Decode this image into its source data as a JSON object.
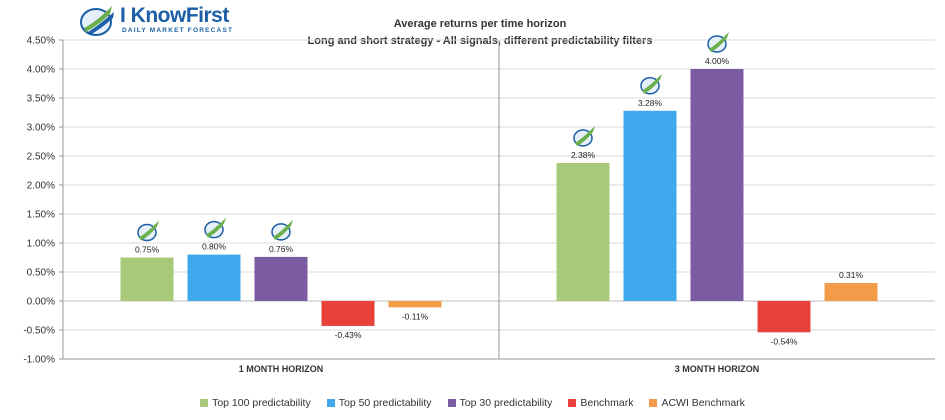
{
  "logo": {
    "brand": "I KnowFirst",
    "tagline": "DAILY MARKET FORECAST"
  },
  "chart_data": {
    "type": "bar",
    "title": "Average returns per time horizon",
    "subtitle": "Long and short strategy - All signals, different predictability filters",
    "categories": [
      "1 MONTH HORIZON",
      "3 MONTH HORIZON"
    ],
    "series": [
      {
        "name": "Top 100 predictability",
        "color": "#a9c97a",
        "values": [
          0.75,
          2.38
        ],
        "labels": [
          "0.75%",
          "2.38%"
        ]
      },
      {
        "name": "Top 50 predictability",
        "color": "#3fa9ee",
        "values": [
          0.8,
          3.28
        ],
        "labels": [
          "0.80%",
          "3.28%"
        ]
      },
      {
        "name": "Top 30 predictability",
        "color": "#7b5ca3",
        "values": [
          0.76,
          4.0
        ],
        "labels": [
          "0.76%",
          "4.00%"
        ]
      },
      {
        "name": "Benchmark",
        "color": "#e8403a",
        "values": [
          -0.43,
          -0.54
        ],
        "labels": [
          "-0.43%",
          "-0.54%"
        ]
      },
      {
        "name": "ACWI Benchmark",
        "color": "#f29c4a",
        "values": [
          -0.11,
          0.31
        ],
        "labels": [
          "-0.11%",
          "0.31%"
        ]
      }
    ],
    "ylim": [
      -1.0,
      4.5
    ],
    "yticks": [
      "-1.00%",
      "-0.50%",
      "0.00%",
      "0.50%",
      "1.00%",
      "1.50%",
      "2.00%",
      "2.50%",
      "3.00%",
      "3.50%",
      "4.00%",
      "4.50%"
    ],
    "grid": true,
    "legend": "bottom",
    "icon_marked_series": [
      "Top 100 predictability",
      "Top 50 predictability",
      "Top 30 predictability"
    ]
  }
}
